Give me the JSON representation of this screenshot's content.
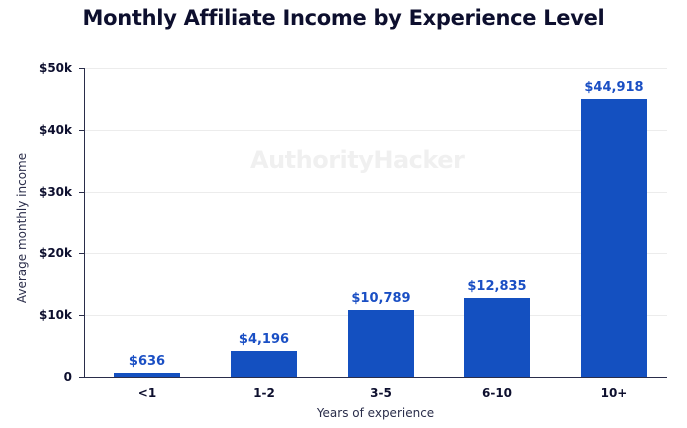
{
  "chart_data": {
    "type": "bar",
    "title": "Monthly Affiliate Income by Experience Level",
    "xlabel": "Years of experience",
    "ylabel": "Average monthly income",
    "categories": [
      "<1",
      "1-2",
      "3-5",
      "6-10",
      "10+"
    ],
    "values": [
      636,
      4196,
      10789,
      12835,
      44918
    ],
    "data_labels": [
      "$636",
      "$4,196",
      "$10,789",
      "$12,835",
      "$44,918"
    ],
    "ylim": [
      0,
      50000
    ],
    "yticks": [
      0,
      10000,
      20000,
      30000,
      40000,
      50000
    ],
    "ytick_labels": [
      "0",
      "$10k",
      "$20k",
      "$30k",
      "$40k",
      "$50k"
    ],
    "grid": true,
    "legend": null,
    "bar_color": "#1450c0",
    "label_color": "#1a4fc4",
    "watermark": "AuthorityHacker"
  }
}
